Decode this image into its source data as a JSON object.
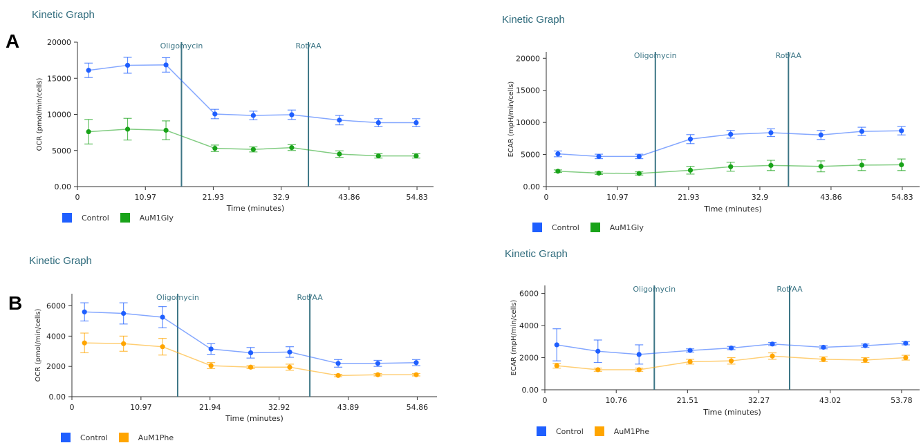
{
  "panel_labels": {
    "a": "A",
    "b": "B"
  },
  "legend": {
    "control": "Control",
    "control_color": "#1f5fff",
    "aum1gly": "AuM1Gly",
    "aum1gly_color": "#19a319",
    "aum1phe": "AuM1Phe",
    "aum1phe_color": "#ffa500"
  },
  "chart_data": [
    {
      "type": "line",
      "title": "Kinetic Graph",
      "xlabel": "Time (minutes)",
      "ylabel": "OCR (pmol/min/cells)",
      "x_ticks": [
        "0",
        "10.97",
        "21.93",
        "32.9",
        "43.86",
        "54.83"
      ],
      "x_tick_values": [
        0,
        10.97,
        21.93,
        32.9,
        43.86,
        54.83
      ],
      "xlim": [
        0,
        57.5
      ],
      "y_ticks": [
        "0.00",
        "5000",
        "10000",
        "15000",
        "20000"
      ],
      "y_tick_values": [
        0,
        5000,
        10000,
        15000,
        20000
      ],
      "ylim": [
        0,
        20000
      ],
      "injections": [
        {
          "label": "Oligomycin",
          "x": 16.8
        },
        {
          "label": "Rot/AA",
          "x": 37.3
        }
      ],
      "x": [
        1.8,
        8.1,
        14.3,
        22.2,
        28.4,
        34.6,
        42.3,
        48.6,
        54.7
      ],
      "series": [
        {
          "name": "Control",
          "color": "#1f5fff",
          "values": [
            16100,
            16800,
            16850,
            10050,
            9850,
            9950,
            9200,
            8850,
            8850
          ],
          "errors": [
            1000,
            1100,
            1000,
            650,
            600,
            650,
            650,
            550,
            550
          ]
        },
        {
          "name": "AuM1Gly",
          "color": "#19a319",
          "values": [
            7600,
            7950,
            7800,
            5300,
            5150,
            5400,
            4500,
            4250,
            4250
          ],
          "errors": [
            1700,
            1500,
            1300,
            450,
            350,
            400,
            450,
            300,
            300
          ]
        }
      ],
      "legend_placement": "bottom-left",
      "grid": false
    },
    {
      "type": "line",
      "title": "Kinetic Graph",
      "xlabel": "Time (minutes)",
      "ylabel": "ECAR (mpH/min/cells)",
      "x_ticks": [
        "0",
        "10.97",
        "21.93",
        "32.9",
        "43.86",
        "54.83"
      ],
      "x_tick_values": [
        0,
        10.97,
        21.93,
        32.9,
        43.86,
        54.83
      ],
      "xlim": [
        0,
        57.5
      ],
      "y_ticks": [
        "0.00",
        "5000",
        "10000",
        "15000",
        "20000"
      ],
      "y_tick_values": [
        0,
        5000,
        10000,
        15000,
        20000
      ],
      "ylim": [
        0,
        21000
      ],
      "injections": [
        {
          "label": "Oligomycin",
          "x": 16.8
        },
        {
          "label": "Rot/AA",
          "x": 37.3
        }
      ],
      "x": [
        1.8,
        8.1,
        14.3,
        22.2,
        28.4,
        34.6,
        42.3,
        48.6,
        54.7
      ],
      "series": [
        {
          "name": "Control",
          "color": "#1f5fff",
          "values": [
            5100,
            4700,
            4700,
            7400,
            8150,
            8400,
            8050,
            8600,
            8700
          ],
          "errors": [
            450,
            350,
            350,
            700,
            600,
            600,
            700,
            650,
            650
          ]
        },
        {
          "name": "AuM1Gly",
          "color": "#19a319",
          "values": [
            2400,
            2100,
            2050,
            2550,
            3100,
            3300,
            3150,
            3350,
            3400
          ],
          "errors": [
            200,
            200,
            250,
            600,
            700,
            800,
            850,
            850,
            900
          ]
        }
      ],
      "legend_placement": "bottom-left",
      "grid": false
    },
    {
      "type": "line",
      "title": "Kinetic Graph",
      "xlabel": "Time (minutes)",
      "ylabel": "OCR (pmol/min/cells)",
      "x_ticks": [
        "0",
        "10.97",
        "21.94",
        "32.92",
        "43.89",
        "54.86"
      ],
      "x_tick_values": [
        0,
        10.97,
        21.94,
        32.92,
        43.89,
        54.86
      ],
      "xlim": [
        0,
        58
      ],
      "y_ticks": [
        "0.00",
        "2000",
        "4000",
        "6000"
      ],
      "y_tick_values": [
        0,
        2000,
        4000,
        6000
      ],
      "ylim": [
        0,
        6800
      ],
      "injections": [
        {
          "label": "Oligomycin",
          "x": 16.8
        },
        {
          "label": "Rot/AA",
          "x": 37.8
        }
      ],
      "x": [
        2.0,
        8.2,
        14.4,
        22.1,
        28.4,
        34.6,
        42.3,
        48.6,
        54.7
      ],
      "series": [
        {
          "name": "Control",
          "color": "#1f5fff",
          "values": [
            5600,
            5500,
            5250,
            3150,
            2900,
            2950,
            2200,
            2200,
            2250
          ],
          "errors": [
            600,
            700,
            700,
            350,
            350,
            350,
            250,
            200,
            200
          ]
        },
        {
          "name": "AuM1Phe",
          "color": "#ffa500",
          "values": [
            3550,
            3500,
            3300,
            2050,
            1950,
            1950,
            1400,
            1450,
            1450
          ],
          "errors": [
            650,
            500,
            550,
            200,
            100,
            200,
            80,
            80,
            80
          ]
        }
      ],
      "legend_placement": "bottom-left",
      "grid": false
    },
    {
      "type": "line",
      "title": "Kinetic Graph",
      "xlabel": "Time (minutes)",
      "ylabel": "ECAR (mpH/min/cells)",
      "x_ticks": [
        "0",
        "10.76",
        "21.51",
        "32.27",
        "43.02",
        "53.78"
      ],
      "x_tick_values": [
        0,
        10.76,
        21.51,
        32.27,
        43.02,
        53.78
      ],
      "xlim": [
        0,
        56.5
      ],
      "y_ticks": [
        "0.00",
        "2000",
        "4000",
        "6000"
      ],
      "y_tick_values": [
        0,
        2000,
        4000,
        6000
      ],
      "ylim": [
        0,
        6500
      ],
      "injections": [
        {
          "label": "Oligomycin",
          "x": 16.5
        },
        {
          "label": "Rot/AA",
          "x": 36.9
        }
      ],
      "x": [
        1.8,
        8.0,
        14.2,
        21.9,
        28.1,
        34.3,
        42.0,
        48.3,
        54.4
      ],
      "series": [
        {
          "name": "Control",
          "color": "#1f5fff",
          "values": [
            2800,
            2400,
            2200,
            2450,
            2600,
            2850,
            2650,
            2750,
            2900
          ],
          "errors": [
            1000,
            700,
            600,
            100,
            100,
            100,
            100,
            100,
            100
          ]
        },
        {
          "name": "AuM1Phe",
          "color": "#ffa500",
          "values": [
            1500,
            1250,
            1250,
            1750,
            1800,
            2100,
            1900,
            1850,
            2000
          ],
          "errors": [
            150,
            100,
            100,
            150,
            200,
            200,
            150,
            150,
            150
          ]
        }
      ],
      "legend_placement": "bottom-left",
      "grid": false
    }
  ]
}
